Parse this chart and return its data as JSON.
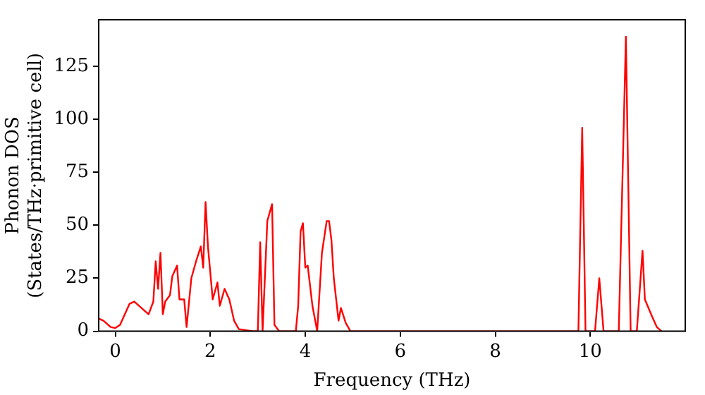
{
  "chart_data": {
    "type": "line",
    "xlabel": "Frequency (THz)",
    "ylabel": "Phonon DOS\n(States/THz·primitive cell)",
    "xlim": [
      -0.35,
      12
    ],
    "ylim": [
      0,
      147
    ],
    "xticks": [
      0,
      2,
      4,
      6,
      8,
      10
    ],
    "yticks": [
      0,
      25,
      50,
      75,
      100,
      125
    ],
    "grid": false,
    "legend": false,
    "marker": "none",
    "line_style": "solid",
    "series": [
      {
        "color": "#ff0000",
        "x": [
          -0.35,
          -0.25,
          -0.1,
          0,
          0.1,
          0.2,
          0.3,
          0.4,
          0.5,
          0.6,
          0.7,
          0.8,
          0.85,
          0.9,
          0.95,
          1.0,
          1.05,
          1.15,
          1.2,
          1.3,
          1.35,
          1.45,
          1.5,
          1.6,
          1.7,
          1.8,
          1.85,
          1.9,
          1.95,
          2.05,
          2.15,
          2.2,
          2.3,
          2.4,
          2.5,
          2.6,
          2.9,
          3.0,
          3.05,
          3.1,
          3.2,
          3.3,
          3.35,
          3.45,
          3.8,
          3.85,
          3.9,
          3.95,
          4.0,
          4.05,
          4.15,
          4.25,
          4.35,
          4.45,
          4.5,
          4.55,
          4.6,
          4.7,
          4.75,
          4.85,
          4.95,
          9.75,
          9.83,
          9.9,
          10.1,
          10.19,
          10.28,
          10.6,
          10.75,
          10.85,
          10.98,
          11.1,
          11.15,
          11.3,
          11.4,
          11.5
        ],
        "values": [
          6,
          5,
          2,
          1.5,
          3,
          8,
          13,
          14,
          12,
          10,
          8,
          14,
          33,
          20,
          37,
          8,
          14,
          17,
          26,
          31,
          15,
          15,
          2,
          25,
          33,
          40,
          30,
          61,
          40,
          15,
          23,
          12,
          20,
          15,
          5,
          1,
          0,
          0,
          42,
          0,
          52,
          60,
          3,
          0,
          0,
          12,
          47,
          51,
          30,
          31,
          12,
          0,
          37,
          52,
          52,
          43,
          25,
          5,
          11,
          4,
          0,
          0,
          96,
          0,
          0,
          25,
          0,
          0,
          139,
          0,
          0,
          38,
          15,
          7,
          2,
          0
        ]
      }
    ]
  }
}
